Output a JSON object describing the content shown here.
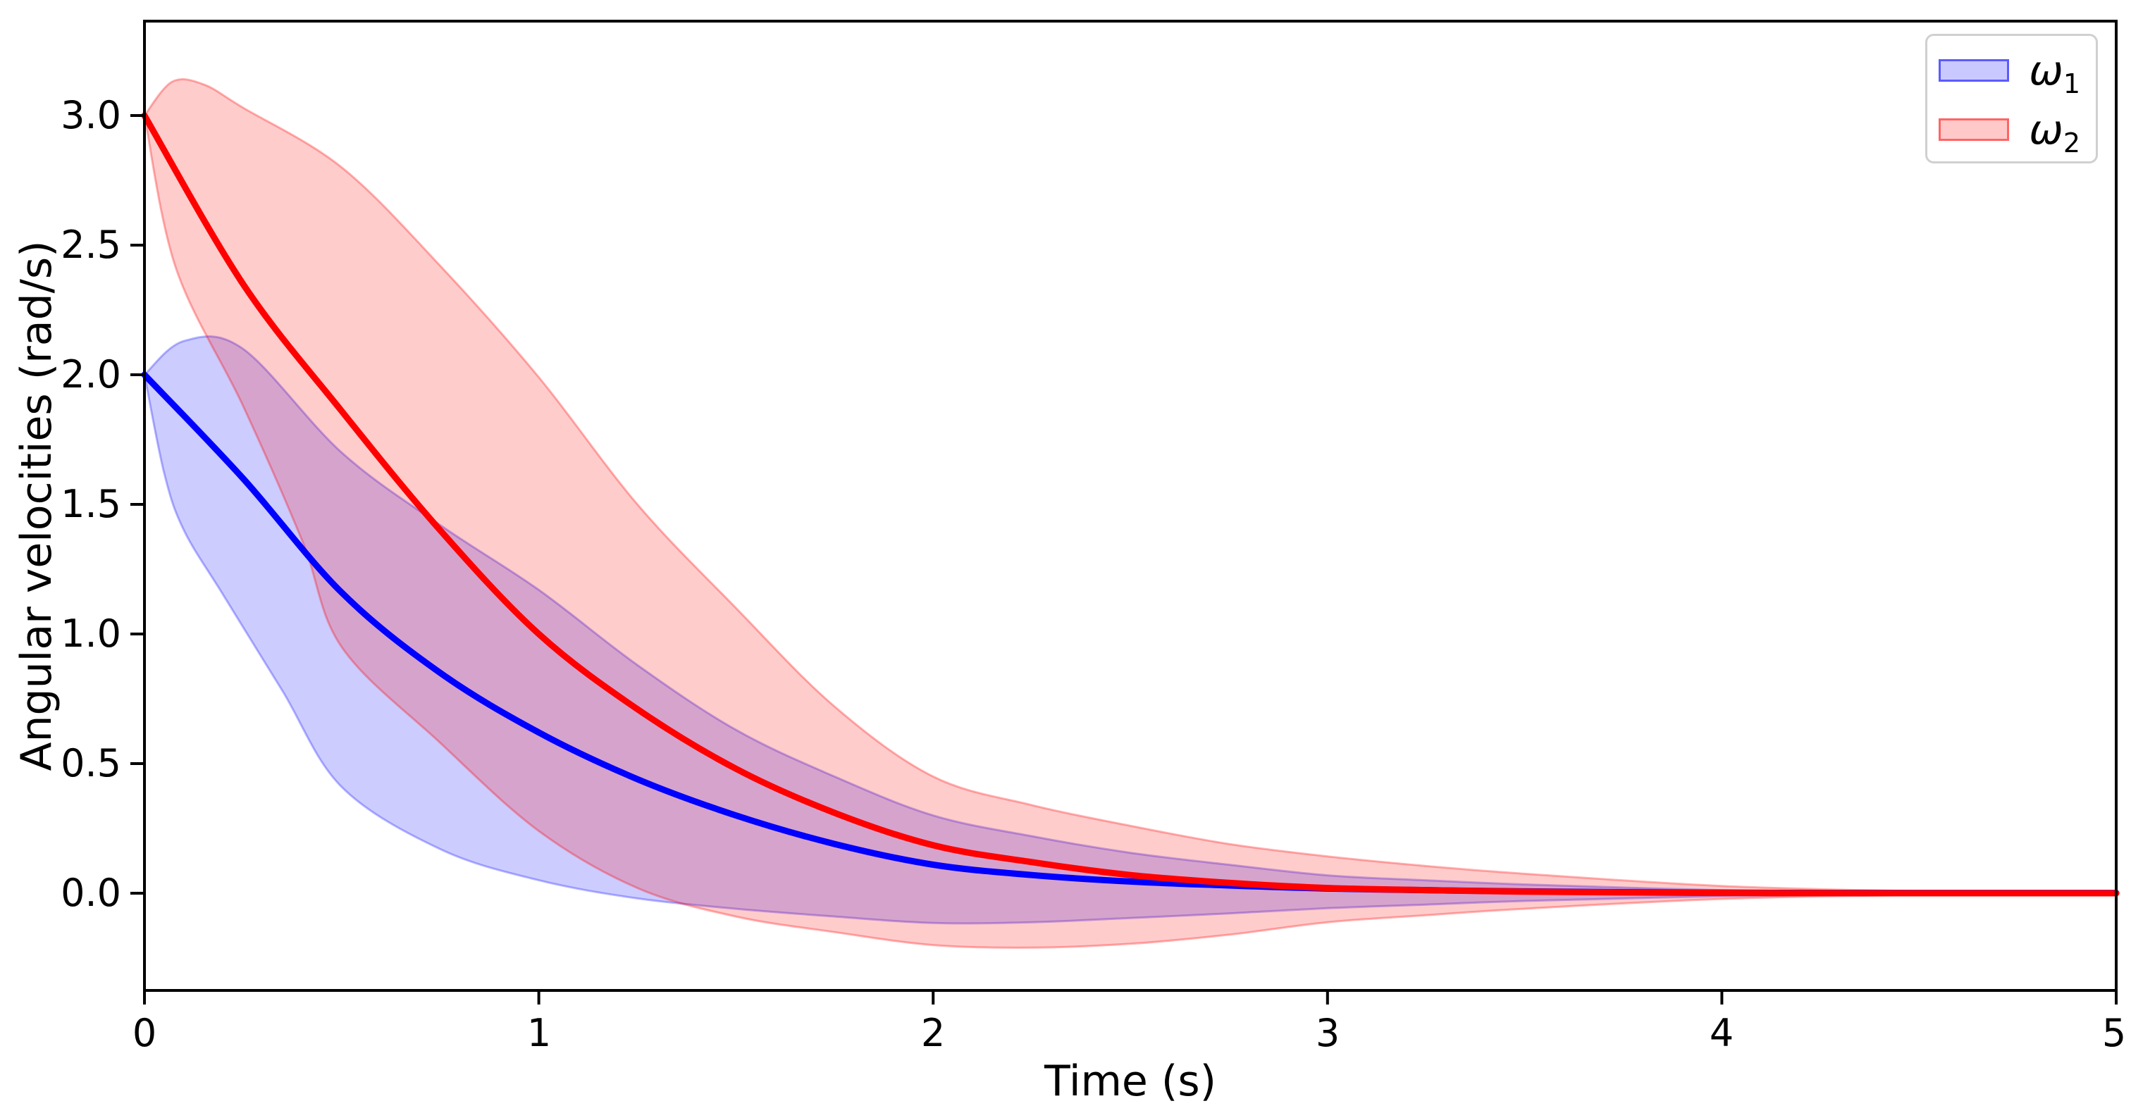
{
  "figure": {
    "background": "#ffffff",
    "spine_color": "#000000",
    "tick_color": "#000000"
  },
  "chart_data": {
    "type": "line",
    "title": "",
    "xlabel": "Time (s)",
    "ylabel": "Angular velocities (rad/s)",
    "xlim": [
      0,
      5
    ],
    "ylim": [
      -0.375,
      3.364
    ],
    "grid": false,
    "xticks": [
      0,
      1,
      2,
      3,
      4,
      5
    ],
    "xtick_labels": [
      "0",
      "1",
      "2",
      "3",
      "4",
      "5"
    ],
    "yticks": [
      0.0,
      0.5,
      1.0,
      1.5,
      2.0,
      2.5,
      3.0
    ],
    "ytick_labels": [
      "0.0",
      "0.5",
      "1.0",
      "1.5",
      "2.0",
      "2.5",
      "3.0"
    ],
    "legend": {
      "position": "upper right",
      "items": [
        {
          "label": "ω1",
          "symbol": "ω",
          "sub": "1",
          "color": "#0000ff"
        },
        {
          "label": "ω2",
          "symbol": "ω",
          "sub": "2",
          "color": "#ff0000"
        }
      ]
    },
    "series": [
      {
        "name": "omega1",
        "label": "ω1",
        "line_color": "#0000ff",
        "line_width": 9,
        "band_fill": "rgba(0,0,255,0.2)",
        "band_edge": "rgba(0,0,255,0.28)",
        "mean": [
          [
            0,
            2.0
          ],
          [
            0.25,
            1.6
          ],
          [
            0.5,
            1.16
          ],
          [
            0.75,
            0.85
          ],
          [
            1,
            0.62
          ],
          [
            1.25,
            0.44
          ],
          [
            1.5,
            0.3
          ],
          [
            1.75,
            0.19
          ],
          [
            2,
            0.11
          ],
          [
            2.25,
            0.07
          ],
          [
            2.5,
            0.045
          ],
          [
            2.75,
            0.03
          ],
          [
            3,
            0.018
          ],
          [
            3.25,
            0.012
          ],
          [
            3.5,
            0.007
          ],
          [
            4,
            0.002
          ],
          [
            4.5,
            0.001
          ],
          [
            5,
            0.001
          ]
        ],
        "band_upper": [
          [
            0,
            2.0
          ],
          [
            0.1,
            2.13
          ],
          [
            0.25,
            2.1
          ],
          [
            0.5,
            1.7
          ],
          [
            0.75,
            1.42
          ],
          [
            1,
            1.17
          ],
          [
            1.25,
            0.88
          ],
          [
            1.5,
            0.63
          ],
          [
            1.75,
            0.45
          ],
          [
            2,
            0.3
          ],
          [
            2.25,
            0.22
          ],
          [
            2.5,
            0.156
          ],
          [
            2.75,
            0.11
          ],
          [
            3,
            0.069
          ],
          [
            3.25,
            0.05
          ],
          [
            3.5,
            0.034
          ],
          [
            4,
            0.012
          ],
          [
            4.5,
            0.004
          ],
          [
            5,
            0.003
          ]
        ],
        "band_lower": [
          [
            0,
            2.0
          ],
          [
            0.05,
            1.62
          ],
          [
            0.1,
            1.4
          ],
          [
            0.2,
            1.15
          ],
          [
            0.35,
            0.78
          ],
          [
            0.5,
            0.41
          ],
          [
            0.75,
            0.17
          ],
          [
            1,
            0.05
          ],
          [
            1.25,
            -0.02
          ],
          [
            1.5,
            -0.06
          ],
          [
            1.75,
            -0.09
          ],
          [
            2,
            -0.115
          ],
          [
            2.25,
            -0.112
          ],
          [
            2.5,
            -0.096
          ],
          [
            2.75,
            -0.078
          ],
          [
            3,
            -0.058
          ],
          [
            3.25,
            -0.044
          ],
          [
            3.5,
            -0.03
          ],
          [
            4,
            -0.012
          ],
          [
            4.5,
            -0.004
          ],
          [
            5,
            -0.003
          ]
        ]
      },
      {
        "name": "omega2",
        "label": "ω2",
        "line_color": "#ff0000",
        "line_width": 9,
        "band_fill": "rgba(255,0,0,0.2)",
        "band_edge": "rgba(255,0,0,0.3)",
        "mean": [
          [
            0,
            3.0
          ],
          [
            0.25,
            2.35
          ],
          [
            0.5,
            1.86
          ],
          [
            0.75,
            1.4
          ],
          [
            1,
            1.0
          ],
          [
            1.25,
            0.71
          ],
          [
            1.5,
            0.48
          ],
          [
            1.75,
            0.31
          ],
          [
            2,
            0.185
          ],
          [
            2.25,
            0.12
          ],
          [
            2.5,
            0.07
          ],
          [
            2.75,
            0.04
          ],
          [
            3,
            0.02
          ],
          [
            3.25,
            0.012
          ],
          [
            3.5,
            0.006
          ],
          [
            4,
            0.001
          ],
          [
            4.5,
            0.0
          ],
          [
            5,
            0.0
          ]
        ],
        "band_upper": [
          [
            0,
            3.0
          ],
          [
            0.07,
            3.13
          ],
          [
            0.15,
            3.12
          ],
          [
            0.25,
            3.03
          ],
          [
            0.5,
            2.8
          ],
          [
            0.75,
            2.42
          ],
          [
            1,
            1.99
          ],
          [
            1.25,
            1.5
          ],
          [
            1.5,
            1.1
          ],
          [
            1.75,
            0.72
          ],
          [
            2,
            0.45
          ],
          [
            2.25,
            0.34
          ],
          [
            2.5,
            0.26
          ],
          [
            2.75,
            0.19
          ],
          [
            3,
            0.142
          ],
          [
            3.25,
            0.105
          ],
          [
            3.5,
            0.075
          ],
          [
            4,
            0.028
          ],
          [
            4.5,
            0.008
          ],
          [
            5,
            0.004
          ]
        ],
        "band_lower": [
          [
            0,
            3.0
          ],
          [
            0.08,
            2.41
          ],
          [
            0.25,
            1.88
          ],
          [
            0.4,
            1.36
          ],
          [
            0.5,
            0.95
          ],
          [
            0.75,
            0.58
          ],
          [
            1,
            0.24
          ],
          [
            1.25,
            0.02
          ],
          [
            1.5,
            -0.09
          ],
          [
            1.75,
            -0.15
          ],
          [
            2,
            -0.2
          ],
          [
            2.25,
            -0.21
          ],
          [
            2.5,
            -0.195
          ],
          [
            2.75,
            -0.16
          ],
          [
            3,
            -0.112
          ],
          [
            3.25,
            -0.085
          ],
          [
            3.5,
            -0.06
          ],
          [
            4,
            -0.022
          ],
          [
            4.5,
            -0.007
          ],
          [
            5,
            -0.003
          ]
        ]
      }
    ]
  }
}
